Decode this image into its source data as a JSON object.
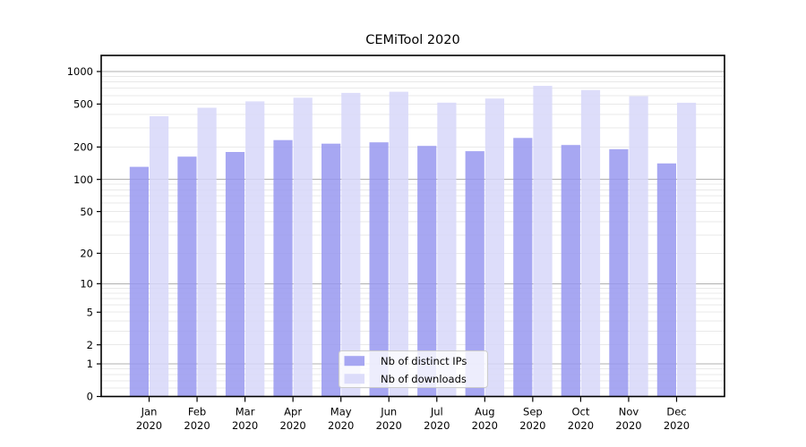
{
  "title": "CEMiTool 2020",
  "chart_data": {
    "type": "bar",
    "title": "CEMiTool 2020",
    "categories": [
      "Jan",
      "Feb",
      "Mar",
      "Apr",
      "May",
      "Jun",
      "Jul",
      "Aug",
      "Sep",
      "Oct",
      "Nov",
      "Dec"
    ],
    "category_sublabel": "2020",
    "series": [
      {
        "name": "Nb of distinct IPs",
        "color": "#9898f0",
        "values": [
          131,
          163,
          180,
          232,
          215,
          221,
          205,
          183,
          243,
          209,
          191,
          141
        ]
      },
      {
        "name": "Nb of downloads",
        "color": "#d7d7f9",
        "values": [
          386,
          463,
          530,
          573,
          634,
          650,
          516,
          563,
          737,
          674,
          591,
          515
        ]
      }
    ],
    "bar_opacity": 0.85,
    "yscale": "log1p",
    "ylim": [
      0,
      1410
    ],
    "yticks": [
      0,
      1,
      2,
      5,
      10,
      20,
      50,
      100,
      200,
      500,
      1000
    ],
    "major_gridlines": [
      1,
      10,
      100,
      1000
    ],
    "minor_gridlines": [
      0.2,
      0.4,
      0.6,
      0.8,
      2,
      3,
      4,
      5,
      6,
      7,
      8,
      9,
      20,
      30,
      40,
      50,
      60,
      70,
      80,
      90,
      200,
      300,
      400,
      500,
      600,
      700,
      800,
      900
    ],
    "legend": {
      "position": "lower center",
      "items": [
        "Nb of distinct IPs",
        "Nb of downloads"
      ]
    },
    "colors": {
      "major_grid": "#b0b0b0",
      "minor_grid": "#e9e9e9",
      "spine": "#000000",
      "text": "#000000",
      "legend_border": "#cccccc",
      "legend_bg": "#ffffff"
    },
    "grid": true
  }
}
